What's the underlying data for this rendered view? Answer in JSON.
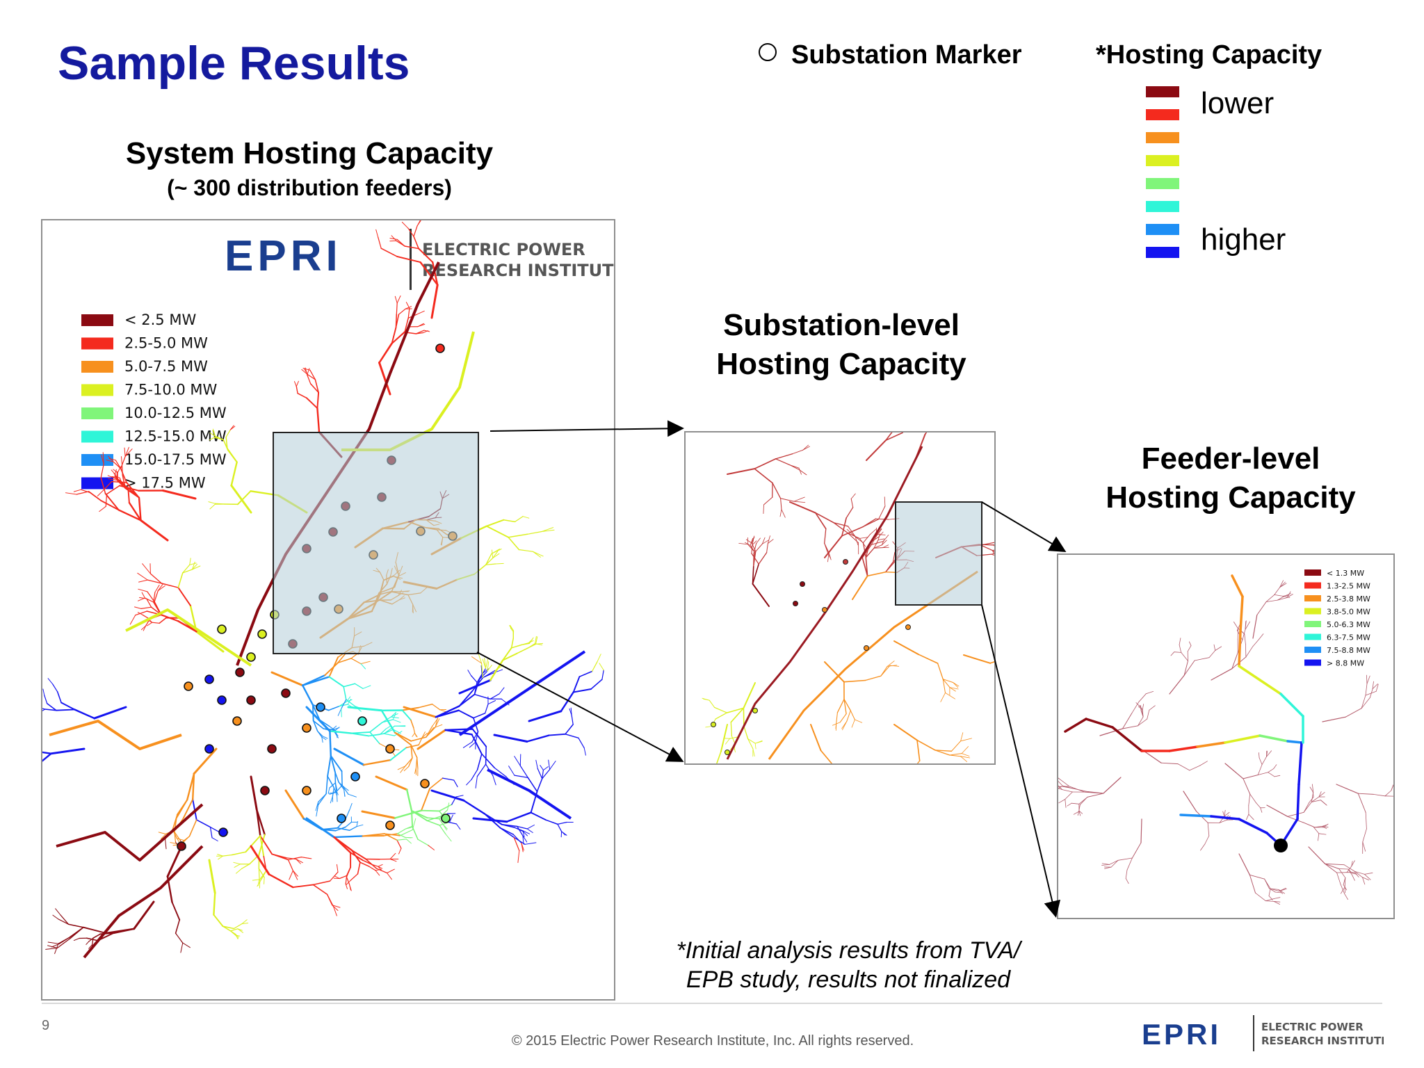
{
  "slide": {
    "title": "Sample Results",
    "page_number": "9",
    "copyright": "© 2015 Electric Power Research Institute, Inc. All rights reserved.",
    "footnote_line1": "*Initial analysis results from TVA/",
    "footnote_line2": "EPB study, results not finalized"
  },
  "legend_top": {
    "marker_label": "Substation Marker",
    "hc_title": "*Hosting Capacity",
    "lower_label": "lower",
    "higher_label": "higher",
    "swatches": [
      "#8b0a12",
      "#f42a1e",
      "#f7901e",
      "#dbf021",
      "#80f57a",
      "#2ff5d8",
      "#1e8ff5",
      "#1414f0"
    ]
  },
  "system_panel": {
    "title": "System Hosting Capacity",
    "subtitle": "(~ 300 distribution feeders)",
    "logo_text": "EPRI",
    "logo_line1": "ELECTRIC POWER",
    "logo_line2": "RESEARCH INSTITUTE",
    "legend": [
      {
        "label": "< 2.5 MW",
        "color": "#8b0a12"
      },
      {
        "label": "2.5-5.0 MW",
        "color": "#f42a1e"
      },
      {
        "label": "5.0-7.5 MW",
        "color": "#f7901e"
      },
      {
        "label": "7.5-10.0 MW",
        "color": "#dbf021"
      },
      {
        "label": "10.0-12.5 MW",
        "color": "#80f57a"
      },
      {
        "label": "12.5-15.0 MW",
        "color": "#2ff5d8"
      },
      {
        "label": "15.0-17.5 MW",
        "color": "#1e8ff5"
      },
      {
        "label": "> 17.5 MW",
        "color": "#1414f0"
      }
    ]
  },
  "substation_panel": {
    "title_line1": "Substation-level",
    "title_line2": "Hosting Capacity"
  },
  "feeder_panel": {
    "title_line1": "Feeder-level",
    "title_line2": "Hosting Capacity",
    "legend": [
      {
        "label": "< 1.3 MW",
        "color": "#8b0a12"
      },
      {
        "label": "1.3-2.5 MW",
        "color": "#f42a1e"
      },
      {
        "label": "2.5-3.8 MW",
        "color": "#f7901e"
      },
      {
        "label": "3.8-5.0 MW",
        "color": "#dbf021"
      },
      {
        "label": "5.0-6.3 MW",
        "color": "#80f57a"
      },
      {
        "label": "6.3-7.5 MW",
        "color": "#2ff5d8"
      },
      {
        "label": "7.5-8.8 MW",
        "color": "#1e8ff5"
      },
      {
        "label": "> 8.8 MW",
        "color": "#1414f0"
      }
    ]
  },
  "footer_logo": {
    "logo_text": "EPRI",
    "logo_line1": "ELECTRIC POWER",
    "logo_line2": "RESEARCH INSTITUTE"
  }
}
